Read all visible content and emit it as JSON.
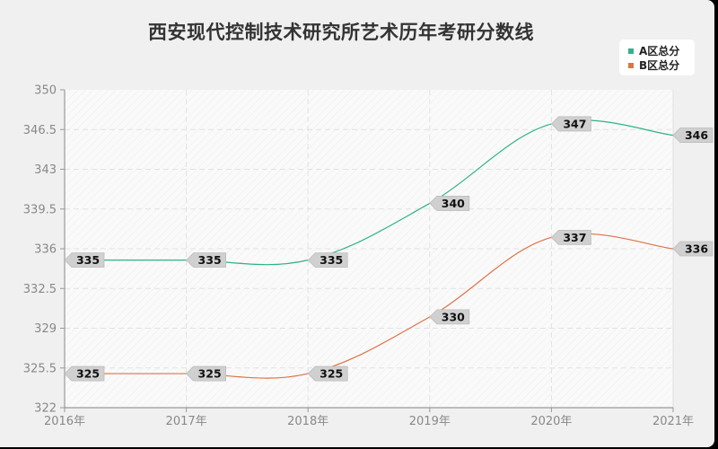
{
  "chart_data": {
    "type": "line",
    "title": "西安现代控制技术研究所艺术历年考研分数线",
    "xlabel": "",
    "ylabel": "",
    "x": [
      "2016年",
      "2017年",
      "2018年",
      "2019年",
      "2020年",
      "2021年"
    ],
    "ylim": [
      322,
      350
    ],
    "yticks": [
      "350",
      "346.5",
      "343",
      "339.5",
      "336",
      "332.5",
      "329",
      "325.5",
      "322"
    ],
    "grid": true,
    "legend_position": "top-right",
    "series": [
      {
        "name": "A区总分",
        "color": "#2db38a",
        "values": [
          335,
          335,
          335,
          340,
          347,
          346
        ]
      },
      {
        "name": "B区总分",
        "color": "#e07245",
        "values": [
          325,
          325,
          325,
          330,
          337,
          336
        ]
      }
    ]
  },
  "legend": {
    "items": [
      {
        "label": "A区总分",
        "color": "#2db38a"
      },
      {
        "label": "B区总分",
        "color": "#e07245"
      }
    ]
  }
}
